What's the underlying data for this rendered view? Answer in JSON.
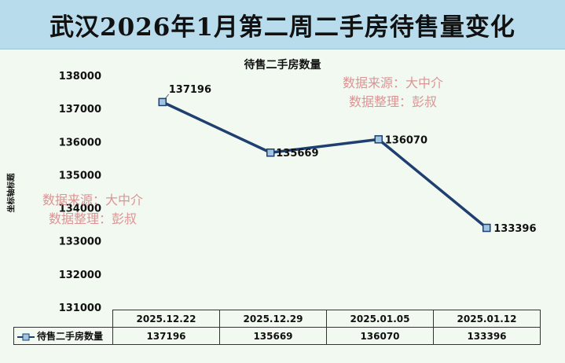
{
  "header": {
    "title": "武汉2026年1月第二周二手房待售量变化"
  },
  "watermarks": [
    {
      "line1": "数据来源：大中介",
      "line2": "数据整理：彭叔"
    },
    {
      "line1": "数据来源：大中介",
      "line2": "数据整理：彭叔"
    }
  ],
  "colors": {
    "series": "#1f3f70",
    "marker_fill": "#9fc5e0",
    "title_band": "#b9dcec",
    "plot_bg": "#f1f9f1",
    "watermark": "#d98a8a"
  },
  "chart_data": {
    "type": "line",
    "title": "待售二手房数量",
    "ylabel": "坐标轴标题",
    "xlabel": "",
    "ylim": [
      131000,
      138000
    ],
    "yticks": [
      138000,
      137000,
      136000,
      135000,
      134000,
      133000,
      132000,
      131000
    ],
    "ytick_labels": [
      "138000",
      "137000",
      "136000",
      "135000",
      "134000",
      "133000",
      "132000",
      "131000"
    ],
    "categories": [
      "2025.12.22",
      "2025.12.29",
      "2025.01.05",
      "2025.01.12"
    ],
    "series": [
      {
        "name": "待售二手房数量",
        "values": [
          137196,
          135669,
          136070,
          133396
        ],
        "labels": [
          "137196",
          "135669",
          "136070",
          "133396"
        ]
      }
    ],
    "grid": false,
    "legend": "data-table"
  }
}
